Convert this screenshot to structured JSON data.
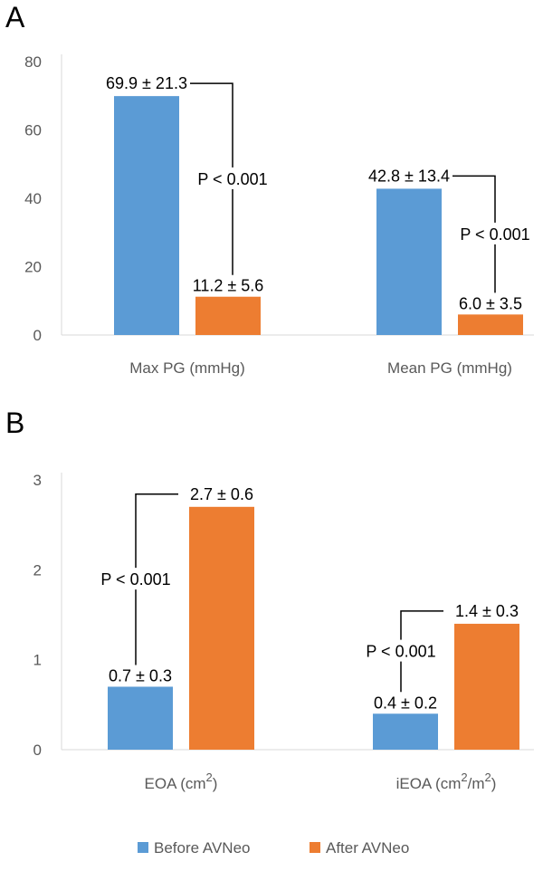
{
  "chart_data": [
    {
      "panel": "A",
      "type": "bar",
      "categories": [
        "Max PG (mmHg)",
        "Mean PG (mmHg)"
      ],
      "series": [
        {
          "name": "Before AVNeo",
          "values": [
            69.9,
            42.8
          ],
          "labels": [
            "69.9 ± 21.3",
            "42.8 ± 13.4"
          ]
        },
        {
          "name": "After AVNeo",
          "values": [
            11.2,
            6.0
          ],
          "labels": [
            "11.2 ± 5.6",
            "6.0 ± 3.5"
          ]
        }
      ],
      "pvalues": [
        "P < 0.001",
        "P < 0.001"
      ],
      "ylim": [
        0,
        80
      ],
      "yticks": [
        0,
        20,
        40,
        60,
        80
      ],
      "grid": false
    },
    {
      "panel": "B",
      "type": "bar",
      "categories": [
        {
          "main": "EOA (cm",
          "sup": "2",
          "tail": ")"
        },
        {
          "main": "iEOA (cm",
          "sup": "2",
          "mid": "/m",
          "sup2": "2",
          "tail": ")"
        }
      ],
      "series": [
        {
          "name": "Before AVNeo",
          "values": [
            0.7,
            0.4
          ],
          "labels": [
            "0.7 ± 0.3",
            "0.4 ± 0.2"
          ]
        },
        {
          "name": "After AVNeo",
          "values": [
            2.7,
            1.4
          ],
          "labels": [
            "2.7 ± 0.6",
            "1.4 ± 0.3"
          ]
        }
      ],
      "pvalues": [
        "P < 0.001",
        "P < 0.001"
      ],
      "ylim": [
        0,
        3
      ],
      "yticks": [
        0,
        1,
        2,
        3
      ],
      "grid": false
    }
  ],
  "legend": {
    "placement": "bottom",
    "items": [
      {
        "name": "Before AVNeo",
        "color": "#5b9bd5"
      },
      {
        "name": "After AVNeo",
        "color": "#ed7d31"
      }
    ]
  },
  "colors": {
    "before": "#5b9bd5",
    "after": "#ed7d31",
    "axis": "#d9d9d9",
    "bracket": "#000000"
  }
}
